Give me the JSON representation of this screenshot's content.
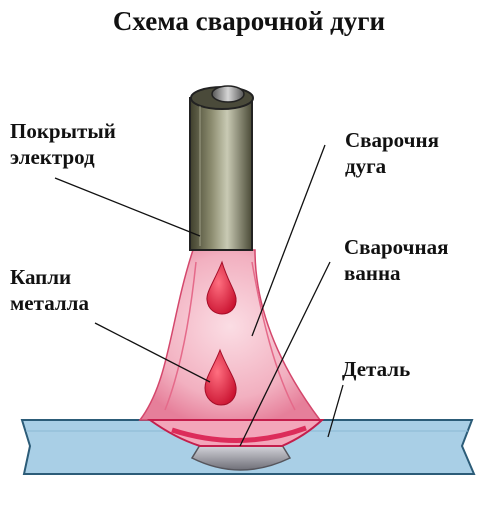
{
  "title": "Схема сварочной дуги",
  "labels": {
    "electrode": [
      "Покрытый",
      "электрод"
    ],
    "arc": [
      "Сварочня",
      "дуга"
    ],
    "pool": [
      "Сварочная",
      "ванна"
    ],
    "drops": [
      "Капли",
      "металла"
    ],
    "part": [
      "Деталь"
    ]
  },
  "colors": {
    "workpiece": "#a9cfe6",
    "electrode": "#6f6f55",
    "arc": "#f4b6c4",
    "pool": "#dc2c5a",
    "droplet": "#dd1e3c",
    "bead": "#9a9aa3"
  }
}
